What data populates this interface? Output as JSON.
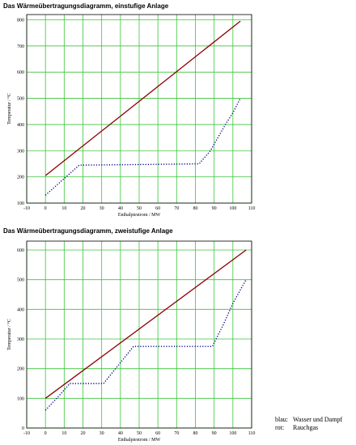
{
  "chart_data": [
    {
      "type": "line",
      "title": "Das Wärmeübertragungsdiagramm, einstufige Anlage",
      "xlabel": "Enthalpiestrom / MW",
      "ylabel": "Temperatur / °C",
      "xlim": [
        -10,
        110
      ],
      "ylim": [
        100,
        820
      ],
      "xticks": [
        -10,
        0,
        10,
        20,
        30,
        40,
        50,
        60,
        70,
        80,
        90,
        100,
        110
      ],
      "yticks": [
        100,
        200,
        300,
        400,
        500,
        600,
        700,
        800
      ],
      "grid": true,
      "series": [
        {
          "color": "#8b0000",
          "style": "solid",
          "x": [
            0,
            104
          ],
          "y": [
            205,
            795
          ]
        },
        {
          "color": "#00008b",
          "style": "dotted",
          "x": [
            0,
            18,
            50,
            82,
            88,
            96,
            100,
            104
          ],
          "y": [
            130,
            245,
            247,
            250,
            300,
            400,
            445,
            500
          ]
        }
      ]
    },
    {
      "type": "line",
      "title": "Das Wärmeübertragungsdiagramm, zweistufige Anlage",
      "xlabel": "Enthalpiestrom / MW",
      "ylabel": "Temperatur / °C",
      "xlim": [
        -10,
        110
      ],
      "ylim": [
        0,
        630
      ],
      "xticks": [
        -10,
        0,
        10,
        20,
        30,
        40,
        50,
        60,
        70,
        80,
        90,
        100,
        110
      ],
      "yticks": [
        0,
        100,
        200,
        300,
        400,
        500,
        600
      ],
      "grid": true,
      "series": [
        {
          "color": "#8b0000",
          "style": "solid",
          "x": [
            0,
            107
          ],
          "y": [
            100,
            600
          ]
        },
        {
          "color": "#00008b",
          "style": "dotted",
          "x": [
            0,
            6,
            13,
            31,
            47,
            89,
            95,
            100,
            107
          ],
          "y": [
            60,
            100,
            150,
            150,
            275,
            275,
            350,
            420,
            500
          ]
        }
      ]
    }
  ],
  "legend": {
    "rows": [
      {
        "key": "blau:",
        "text": "Wasser und Dampf"
      },
      {
        "key": "rot:",
        "text": "Rauchgas"
      }
    ]
  },
  "colors": {
    "grid": "#3cc43c"
  }
}
